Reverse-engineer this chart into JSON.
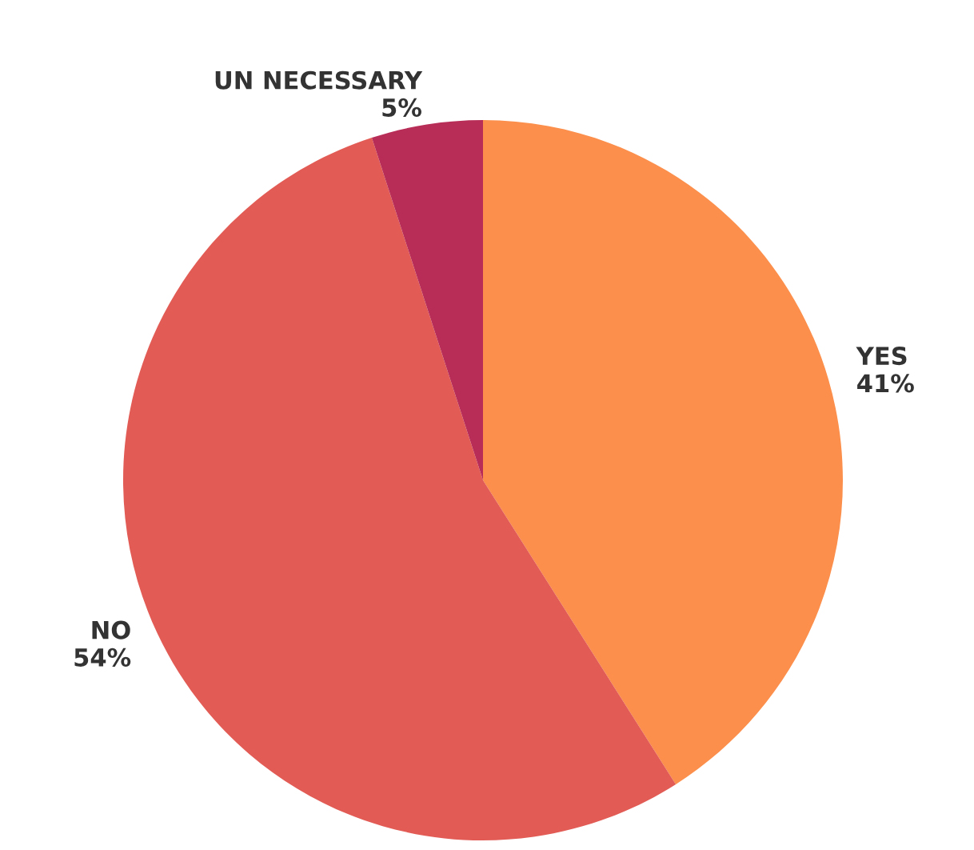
{
  "chart_data": {
    "type": "pie",
    "categories": [
      "YES",
      "NO",
      "UN NECESSARY"
    ],
    "values": [
      41,
      54,
      5
    ],
    "value_labels": [
      "41%",
      "54%",
      "5%"
    ],
    "colors": [
      "#fb8f4b",
      "#e25c55",
      "#b82d57"
    ],
    "legend": false
  }
}
